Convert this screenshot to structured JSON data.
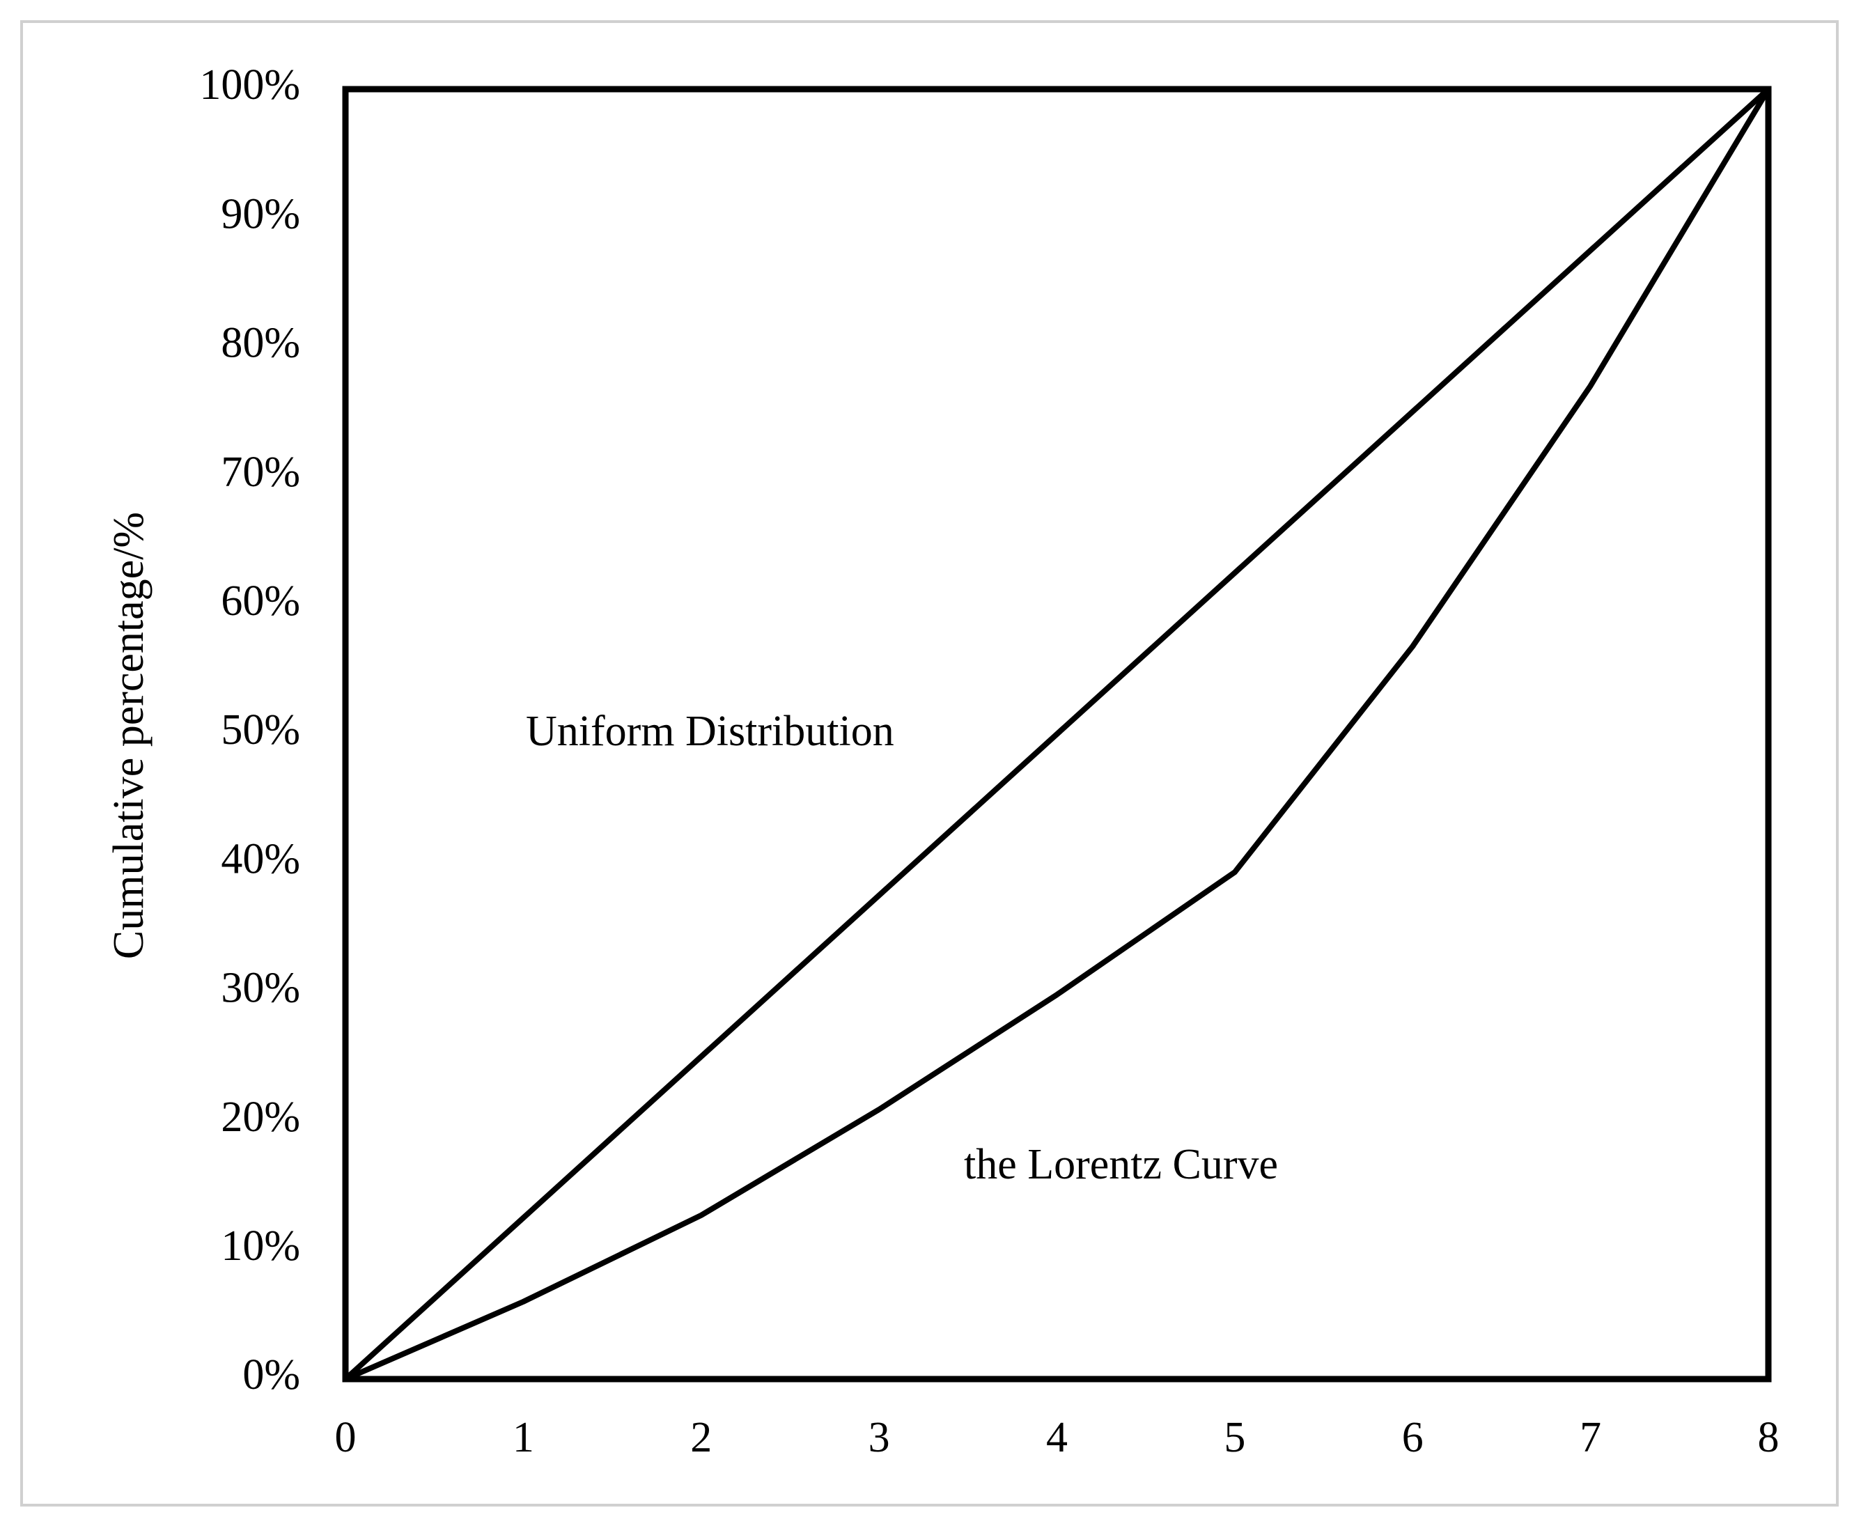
{
  "chart_data": {
    "type": "line",
    "y_label": "Cumulative percentage/%",
    "x": [
      0,
      1,
      2,
      3,
      4,
      5,
      6,
      7,
      8
    ],
    "series": [
      {
        "name": "Uniform Distribution",
        "color": "#000000",
        "values": [
          0,
          12.5,
          25,
          37.5,
          50,
          62.5,
          75,
          87.5,
          100
        ]
      },
      {
        "name": "the Lorentz Curve",
        "color": "#000000",
        "values": [
          0,
          6,
          12.7,
          20.9,
          29.8,
          39.3,
          56.8,
          77,
          100
        ]
      }
    ],
    "xlim": [
      0,
      8
    ],
    "xticks": [
      0,
      1,
      2,
      3,
      4,
      5,
      6,
      7,
      8
    ],
    "ylim": [
      0,
      100
    ],
    "yticks": [
      {
        "value": 0,
        "label": "0%"
      },
      {
        "value": 10,
        "label": "10%"
      },
      {
        "value": 20,
        "label": "20%"
      },
      {
        "value": 30,
        "label": "30%"
      },
      {
        "value": 40,
        "label": "40%"
      },
      {
        "value": 50,
        "label": "50%"
      },
      {
        "value": 60,
        "label": "60%"
      },
      {
        "value": 70,
        "label": "70%"
      },
      {
        "value": 80,
        "label": "80%"
      },
      {
        "value": 90,
        "label": "90%"
      },
      {
        "value": 100,
        "label": "100%"
      }
    ],
    "grid": false
  }
}
